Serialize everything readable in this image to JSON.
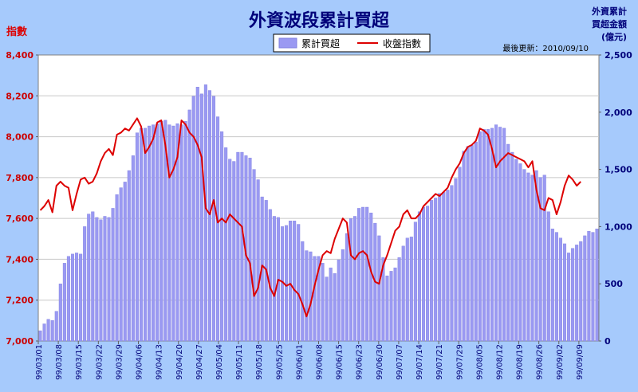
{
  "chart_data": {
    "type": "bar",
    "title": "外資波段累計買超",
    "update_text": "最後更新：2010/09/10",
    "left_axis_label": "指數",
    "right_axis_label_lines": [
      "外資累計",
      "買超金額",
      "(億元)"
    ],
    "legend": {
      "bar": "累計買超",
      "line": "收盤指數"
    },
    "colors": {
      "background": "#a6cafc",
      "plot": "#ffffff",
      "bar": "#9a99f2",
      "bar_edge": "#8080e0",
      "line": "#dd0000",
      "title": "#00007a",
      "left_label": "#dd0000"
    },
    "left_axis": {
      "min": 7000,
      "max": 8400,
      "ticks": [
        "7,000",
        "7,200",
        "7,400",
        "7,600",
        "7,800",
        "8,000",
        "8,200",
        "8,400"
      ]
    },
    "right_axis": {
      "min": 0,
      "max": 2500,
      "ticks": [
        "0",
        "500",
        "1,000",
        "1,500",
        "2,000",
        "2,500"
      ]
    },
    "x_tick_labels": [
      "99/03/01",
      "99/03/08",
      "99/03/15",
      "99/03/22",
      "99/03/29",
      "99/04/06",
      "99/04/13",
      "99/04/20",
      "99/04/27",
      "99/05/04",
      "99/05/11",
      "99/05/18",
      "99/05/25",
      "99/06/01",
      "99/06/08",
      "99/06/15",
      "99/06/23",
      "99/06/30",
      "99/07/07",
      "99/07/14",
      "99/07/21",
      "99/07/29",
      "99/08/05",
      "99/08/12",
      "99/08/19",
      "99/08/26",
      "99/09/02",
      "99/09/09"
    ],
    "series": [
      {
        "name": "累計買超",
        "axis": "right",
        "values": [
          90,
          150,
          190,
          180,
          260,
          500,
          680,
          740,
          760,
          770,
          760,
          1000,
          1110,
          1130,
          1080,
          1060,
          1090,
          1080,
          1160,
          1280,
          1340,
          1390,
          1490,
          1620,
          1820,
          1860,
          1860,
          1880,
          1890,
          1900,
          1920,
          1930,
          1890,
          1880,
          1900,
          1890,
          1920,
          2020,
          2140,
          2220,
          2160,
          2240,
          2190,
          2140,
          1960,
          1830,
          1690,
          1590,
          1570,
          1650,
          1650,
          1620,
          1600,
          1500,
          1410,
          1260,
          1230,
          1150,
          1090,
          1080,
          1000,
          1010,
          1050,
          1050,
          1020,
          870,
          790,
          780,
          740,
          740,
          680,
          560,
          640,
          590,
          710,
          800,
          940,
          1070,
          1090,
          1160,
          1170,
          1170,
          1120,
          1030,
          920,
          730,
          570,
          610,
          640,
          730,
          830,
          900,
          910,
          1040,
          1130,
          1170,
          1180,
          1230,
          1250,
          1290,
          1300,
          1320,
          1360,
          1420,
          1520,
          1660,
          1700,
          1710,
          1740,
          1830,
          1850,
          1850,
          1860,
          1890,
          1870,
          1860,
          1720,
          1650,
          1590,
          1550,
          1500,
          1470,
          1450,
          1490,
          1430,
          1450,
          1130,
          980,
          950,
          900,
          850,
          770,
          810,
          840,
          870,
          920,
          960,
          950,
          980
        ]
      },
      {
        "name": "收盤指數",
        "axis": "left",
        "values": [
          7640,
          7660,
          7690,
          7630,
          7760,
          7780,
          7760,
          7750,
          7640,
          7720,
          7790,
          7800,
          7770,
          7780,
          7820,
          7880,
          7920,
          7940,
          7910,
          8010,
          8020,
          8040,
          8030,
          8060,
          8090,
          8050,
          7920,
          7950,
          7990,
          8070,
          8080,
          7960,
          7800,
          7840,
          7900,
          8080,
          8060,
          8020,
          8000,
          7960,
          7900,
          7650,
          7620,
          7690,
          7580,
          7600,
          7580,
          7620,
          7600,
          7580,
          7560,
          7420,
          7380,
          7220,
          7260,
          7370,
          7350,
          7260,
          7220,
          7300,
          7290,
          7270,
          7280,
          7250,
          7230,
          7180,
          7120,
          7180,
          7270,
          7350,
          7420,
          7440,
          7430,
          7500,
          7550,
          7600,
          7580,
          7420,
          7400,
          7430,
          7440,
          7420,
          7340,
          7290,
          7280,
          7370,
          7420,
          7480,
          7540,
          7560,
          7620,
          7640,
          7600,
          7600,
          7620,
          7660,
          7680,
          7700,
          7720,
          7710,
          7730,
          7750,
          7800,
          7840,
          7870,
          7920,
          7950,
          7960,
          7980,
          8040,
          8030,
          8010,
          7940,
          7850,
          7880,
          7900,
          7920,
          7910,
          7900,
          7890,
          7880,
          7850,
          7880,
          7740,
          7650,
          7640,
          7700,
          7690,
          7620,
          7680,
          7760,
          7810,
          7790,
          7760,
          7780
        ]
      }
    ]
  }
}
